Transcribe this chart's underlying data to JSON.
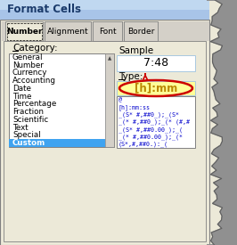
{
  "title": "Format Cells",
  "title_bg_top": "#7baee8",
  "title_bg_bot": "#5a8fd4",
  "title_text_color": "#1a3a6a",
  "tabs": [
    "Number",
    "Alignment",
    "Font",
    "Border"
  ],
  "active_tab": "Number",
  "category_label": "Category:",
  "categories": [
    "General",
    "Number",
    "Currency",
    "Accounting",
    "Date",
    "Time",
    "Percentage",
    "Fraction",
    "Scientific",
    "Text",
    "Special",
    "Custom"
  ],
  "selected_category": "Custom",
  "selected_bg": "#3fa3f0",
  "sample_label": "Sample",
  "sample_value": "7:48",
  "type_label": "Type:",
  "type_value": "[h]:mm",
  "type_list": [
    "@",
    "[h]:mm:ss",
    "_(S* #,##0_);_(S*",
    "_(* #,##0_);_(* (#,#",
    "_(S* #,##0.00_);_( ",
    "_(* #,##0.00_);_(*",
    "(S*,#,##0.):_("
  ],
  "arrow_color": "#cc0000",
  "circle_color": "#cc0000",
  "type_value_color": "#bb8800",
  "type_value_bg": "#ffff99",
  "dialog_bg": "#ece9d8",
  "tab_bg": "#d4d0c8",
  "listbox_bg": "white",
  "list_text_color": "#0000cc",
  "torn_bg": "#909090",
  "torn_edge": "#606060",
  "white": "#ffffff",
  "border_dark": "#808080",
  "border_light": "#ffffff",
  "scrollbar_bg": "#d4d0c8"
}
